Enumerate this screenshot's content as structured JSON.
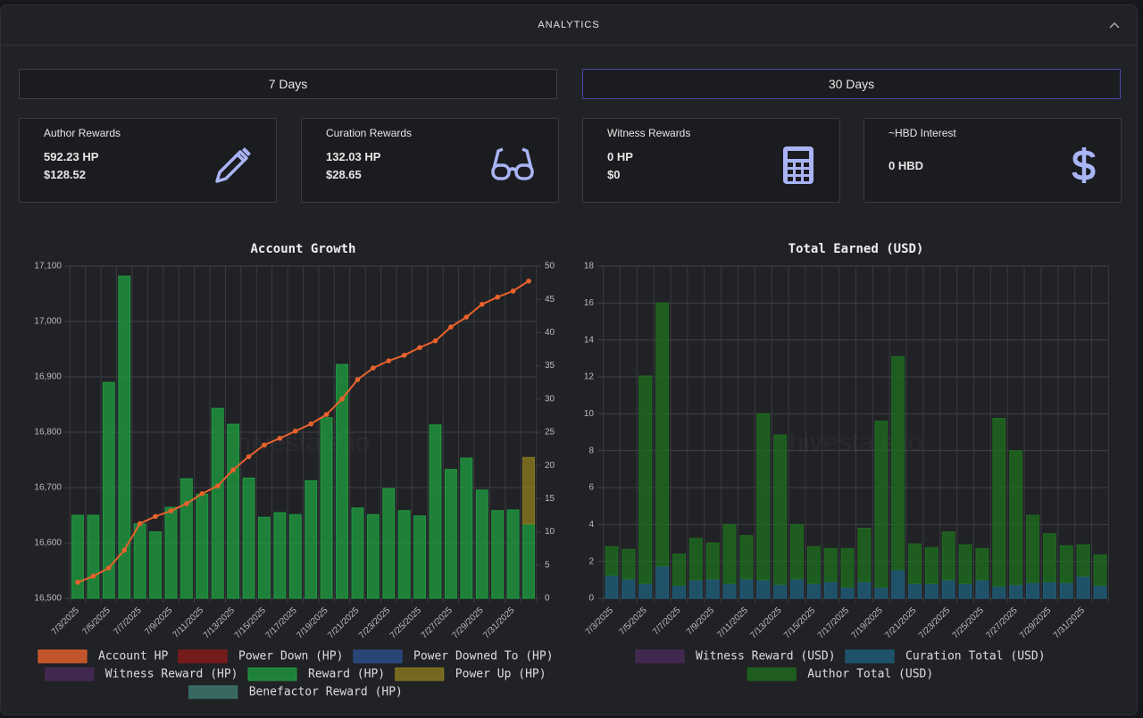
{
  "header": {
    "title": "ANALYTICS"
  },
  "tabs": [
    "7 Days",
    "30 Days"
  ],
  "cards": [
    {
      "label": "Author Rewards",
      "lines": [
        "592.23 HP",
        "$128.52"
      ]
    },
    {
      "label": "Curation Rewards",
      "lines": [
        "132.03 HP",
        "$28.65"
      ]
    },
    {
      "label": "Witness Rewards",
      "lines": [
        "0 HP",
        "$0"
      ]
    },
    {
      "label": "~HBD Interest",
      "lines": [
        "0 HBD"
      ]
    }
  ],
  "watermark": "hivestats.io",
  "chart_data": [
    {
      "type": "bar",
      "title": "Account Growth",
      "categories": [
        "7/3/2025",
        null,
        "7/5/2025",
        null,
        "7/7/2025",
        null,
        "7/9/2025",
        null,
        "7/11/2025",
        null,
        "7/13/2025",
        null,
        "7/15/2025",
        null,
        "7/17/2025",
        null,
        "7/19/2025",
        null,
        "7/21/2025",
        null,
        "7/23/2025",
        null,
        "7/25/2025",
        null,
        "7/27/2025",
        null,
        "7/29/2025",
        null,
        "7/31/2025",
        null
      ],
      "ylim": [
        16500,
        17100
      ],
      "yticks": [
        {
          "value": 16500,
          "label": "16,500"
        },
        {
          "value": 16600,
          "label": "16,600"
        },
        {
          "value": 16700,
          "label": "16,700"
        },
        {
          "value": 16800,
          "label": "16,800"
        },
        {
          "value": 16900,
          "label": "16,900"
        },
        {
          "value": 17000,
          "label": "17,000"
        },
        {
          "value": 17100,
          "label": "17,100"
        }
      ],
      "y2lim": [
        0,
        50
      ],
      "y2ticks": [
        0,
        5,
        10,
        15,
        20,
        25,
        30,
        35,
        40,
        45,
        50
      ],
      "grid": true,
      "stacked": true,
      "series": [
        {
          "name": "Account HP",
          "type": "line",
          "color": "#e8622c",
          "values": [
            16529,
            16540,
            16555,
            16587,
            16635,
            16648,
            16658,
            16671,
            16689,
            16703,
            16732,
            16756,
            16777,
            16789,
            16802,
            16815,
            16832,
            16860,
            16895,
            16916,
            16929,
            16939,
            16953,
            16965,
            16990,
            17008,
            17031,
            17044,
            17055,
            17073
          ]
        },
        {
          "name": "Power Down (HP)",
          "color": "#8b1a1a",
          "axis": "y2",
          "values": [
            0,
            0,
            0,
            0,
            0,
            0,
            0,
            0,
            0,
            0,
            0,
            0,
            0,
            0,
            0,
            0,
            0,
            0,
            0,
            0,
            0,
            0,
            0,
            0,
            0,
            0,
            0,
            0,
            0,
            0
          ]
        },
        {
          "name": "Power Downed To (HP)",
          "color": "#2a4f8a",
          "axis": "y2",
          "values": [
            0,
            0,
            0,
            0,
            0,
            0,
            0,
            0,
            0,
            0,
            0,
            0,
            0,
            0,
            0,
            0,
            0,
            0,
            0,
            0,
            0,
            0,
            0,
            0,
            0,
            0,
            0,
            0,
            0,
            0
          ]
        },
        {
          "name": "Witness Reward (HP)",
          "color": "#4a2a5a",
          "axis": "y2",
          "values": [
            0,
            0,
            0,
            0,
            0,
            0,
            0,
            0,
            0,
            0,
            0,
            0,
            0,
            0,
            0,
            0,
            0,
            0,
            0,
            0,
            0,
            0,
            0,
            0,
            0,
            0,
            0,
            0,
            0,
            0
          ]
        },
        {
          "name": "Reward (HP)",
          "color": "#1f9a3f",
          "axis": "y2",
          "values": [
            12.5,
            12.5,
            32.5,
            48.5,
            11.2,
            10,
            13.7,
            18,
            15.7,
            28.6,
            26.2,
            18.1,
            12.2,
            12.9,
            12.6,
            17.7,
            27.2,
            35.2,
            13.6,
            12.6,
            16.5,
            13.2,
            12.4,
            26.1,
            19.4,
            21.1,
            16.3,
            13.2,
            13.3,
            11.2
          ]
        },
        {
          "name": "Power Up (HP)",
          "color": "#8a7a1f",
          "axis": "y2",
          "values": [
            0,
            0,
            0,
            0,
            0,
            0,
            0,
            0,
            0,
            0,
            0,
            0,
            0,
            0,
            0,
            0,
            0,
            0,
            0,
            0,
            0,
            0,
            0,
            0,
            0,
            0,
            0,
            0,
            0,
            10
          ]
        },
        {
          "name": "Benefactor Reward (HP)",
          "color": "#3d7a70",
          "axis": "y2",
          "values": [
            0,
            0,
            0,
            0,
            0,
            0,
            0,
            0,
            0,
            0,
            0,
            0,
            0,
            0,
            0,
            0,
            0,
            0,
            0,
            0,
            0,
            0,
            0,
            0,
            0,
            0,
            0,
            0,
            0,
            0
          ]
        }
      ]
    },
    {
      "type": "bar",
      "title": "Total Earned (USD)",
      "categories": [
        "7/3/2025",
        null,
        "7/5/2025",
        null,
        "7/7/2025",
        null,
        "7/9/2025",
        null,
        "7/11/2025",
        null,
        "7/13/2025",
        null,
        "7/15/2025",
        null,
        "7/17/2025",
        null,
        "7/19/2025",
        null,
        "7/21/2025",
        null,
        "7/23/2025",
        null,
        "7/25/2025",
        null,
        "7/27/2025",
        null,
        "7/29/2025",
        null,
        "7/31/2025",
        null
      ],
      "ylim": [
        0,
        18
      ],
      "yticks": [
        0,
        2,
        4,
        6,
        8,
        10,
        12,
        14,
        16,
        18
      ],
      "grid": true,
      "stacked": true,
      "series": [
        {
          "name": "Witness Reward (USD)",
          "color": "#4a2a5a",
          "values": [
            0,
            0,
            0,
            0,
            0,
            0,
            0,
            0,
            0,
            0,
            0,
            0,
            0,
            0,
            0,
            0,
            0,
            0,
            0,
            0,
            0,
            0,
            0,
            0,
            0,
            0,
            0,
            0,
            0,
            0
          ]
        },
        {
          "name": "Curation Total (USD)",
          "color": "#1f5f7a",
          "values": [
            1.25,
            1.05,
            0.8,
            1.75,
            0.7,
            1.0,
            1.05,
            0.8,
            1.05,
            1.0,
            0.75,
            1.05,
            0.8,
            0.9,
            0.6,
            0.9,
            0.6,
            1.55,
            0.8,
            0.8,
            1.0,
            0.8,
            1.0,
            0.65,
            0.75,
            0.85,
            0.9,
            0.85,
            1.2,
            0.7
          ]
        },
        {
          "name": "Author Total (USD)",
          "color": "#1e6b1e",
          "values": [
            1.55,
            1.6,
            11.25,
            14.25,
            1.7,
            2.25,
            1.95,
            3.2,
            2.35,
            9.0,
            8.1,
            2.95,
            2.0,
            1.8,
            2.1,
            2.9,
            9.0,
            11.55,
            2.15,
            1.95,
            2.6,
            2.1,
            1.7,
            9.1,
            7.25,
            3.65,
            2.6,
            2.0,
            1.7,
            1.65
          ]
        }
      ]
    }
  ]
}
